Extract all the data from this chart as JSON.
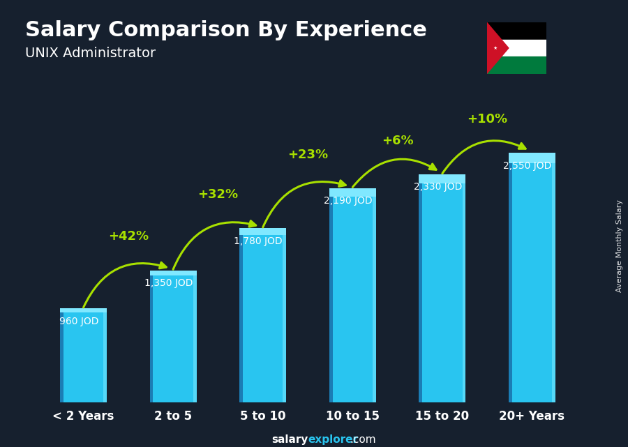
{
  "title_line1": "Salary Comparison By Experience",
  "title_line2": "UNIX Administrator",
  "categories": [
    "< 2 Years",
    "2 to 5",
    "5 to 10",
    "10 to 15",
    "15 to 20",
    "20+ Years"
  ],
  "values": [
    960,
    1350,
    1780,
    2190,
    2330,
    2550
  ],
  "value_labels": [
    "960 JOD",
    "1,350 JOD",
    "1,780 JOD",
    "2,190 JOD",
    "2,330 JOD",
    "2,550 JOD"
  ],
  "pct_changes": [
    "+42%",
    "+32%",
    "+23%",
    "+6%",
    "+10%"
  ],
  "bar_color_main": "#29c5f0",
  "bar_color_left": "#1b7db5",
  "bar_color_right": "#55d8f8",
  "bar_color_top_highlight": "#80e8ff",
  "bg_color": "#16202e",
  "text_color_white": "#ffffff",
  "text_color_cyan": "#29c5f0",
  "text_color_green": "#a8e000",
  "ylabel": "Average Monthly Salary",
  "footer_salary": "salary",
  "footer_explorer": "explorer",
  "footer_com": ".com",
  "ylim": [
    0,
    3200
  ],
  "bar_width": 0.52
}
